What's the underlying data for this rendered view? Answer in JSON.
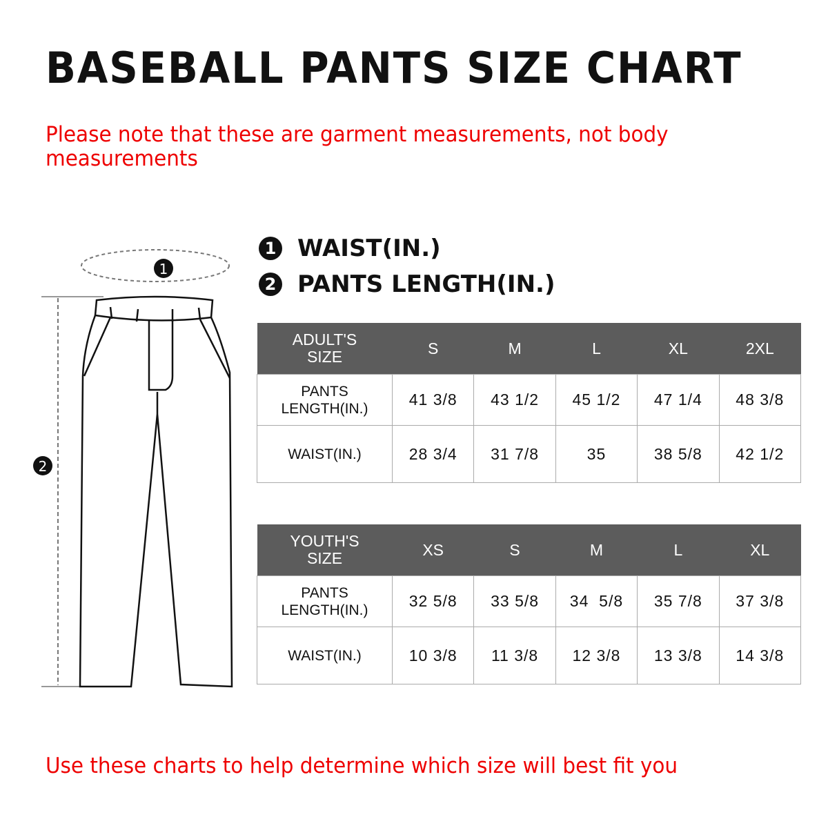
{
  "title": "BASEBALL PANTS SIZE CHART",
  "note": "Please note that these are garment measurements, not body measurements",
  "legend": [
    {
      "marker": "1",
      "label": "WAIST(IN.)"
    },
    {
      "marker": "2",
      "label": "PANTS LENGTH(IN.)"
    }
  ],
  "diagram": {
    "waist_marker": "1",
    "length_marker": "2"
  },
  "adult": {
    "header": [
      "ADULT'S SIZE",
      "S",
      "M",
      "L",
      "XL",
      "2XL"
    ],
    "rows": [
      [
        "PANTS LENGTH(IN.)",
        "41 3/8",
        "43 1/2",
        "45 1/2",
        "47 1/4",
        "48 3/8"
      ],
      [
        "WAIST(IN.)",
        "28 3/4",
        "31 7/8",
        "35",
        "38 5/8",
        "42 1/2"
      ]
    ]
  },
  "youth": {
    "header": [
      "YOUTH'S SIZE",
      "XS",
      "S",
      "M",
      "L",
      "XL"
    ],
    "rows": [
      [
        "PANTS LENGTH(IN.)",
        "32 5/8",
        "33 5/8",
        "34  5/8",
        "35 7/8",
        "37 3/8"
      ],
      [
        "WAIST(IN.)",
        "10 3/8",
        "11 3/8",
        "12 3/8",
        "13 3/8",
        "14 3/8"
      ]
    ]
  },
  "footer": "Use these charts to help determine which size will best fit you",
  "colors": {
    "header_bg": "#5c5c5c",
    "note_red": "#ee0000"
  }
}
